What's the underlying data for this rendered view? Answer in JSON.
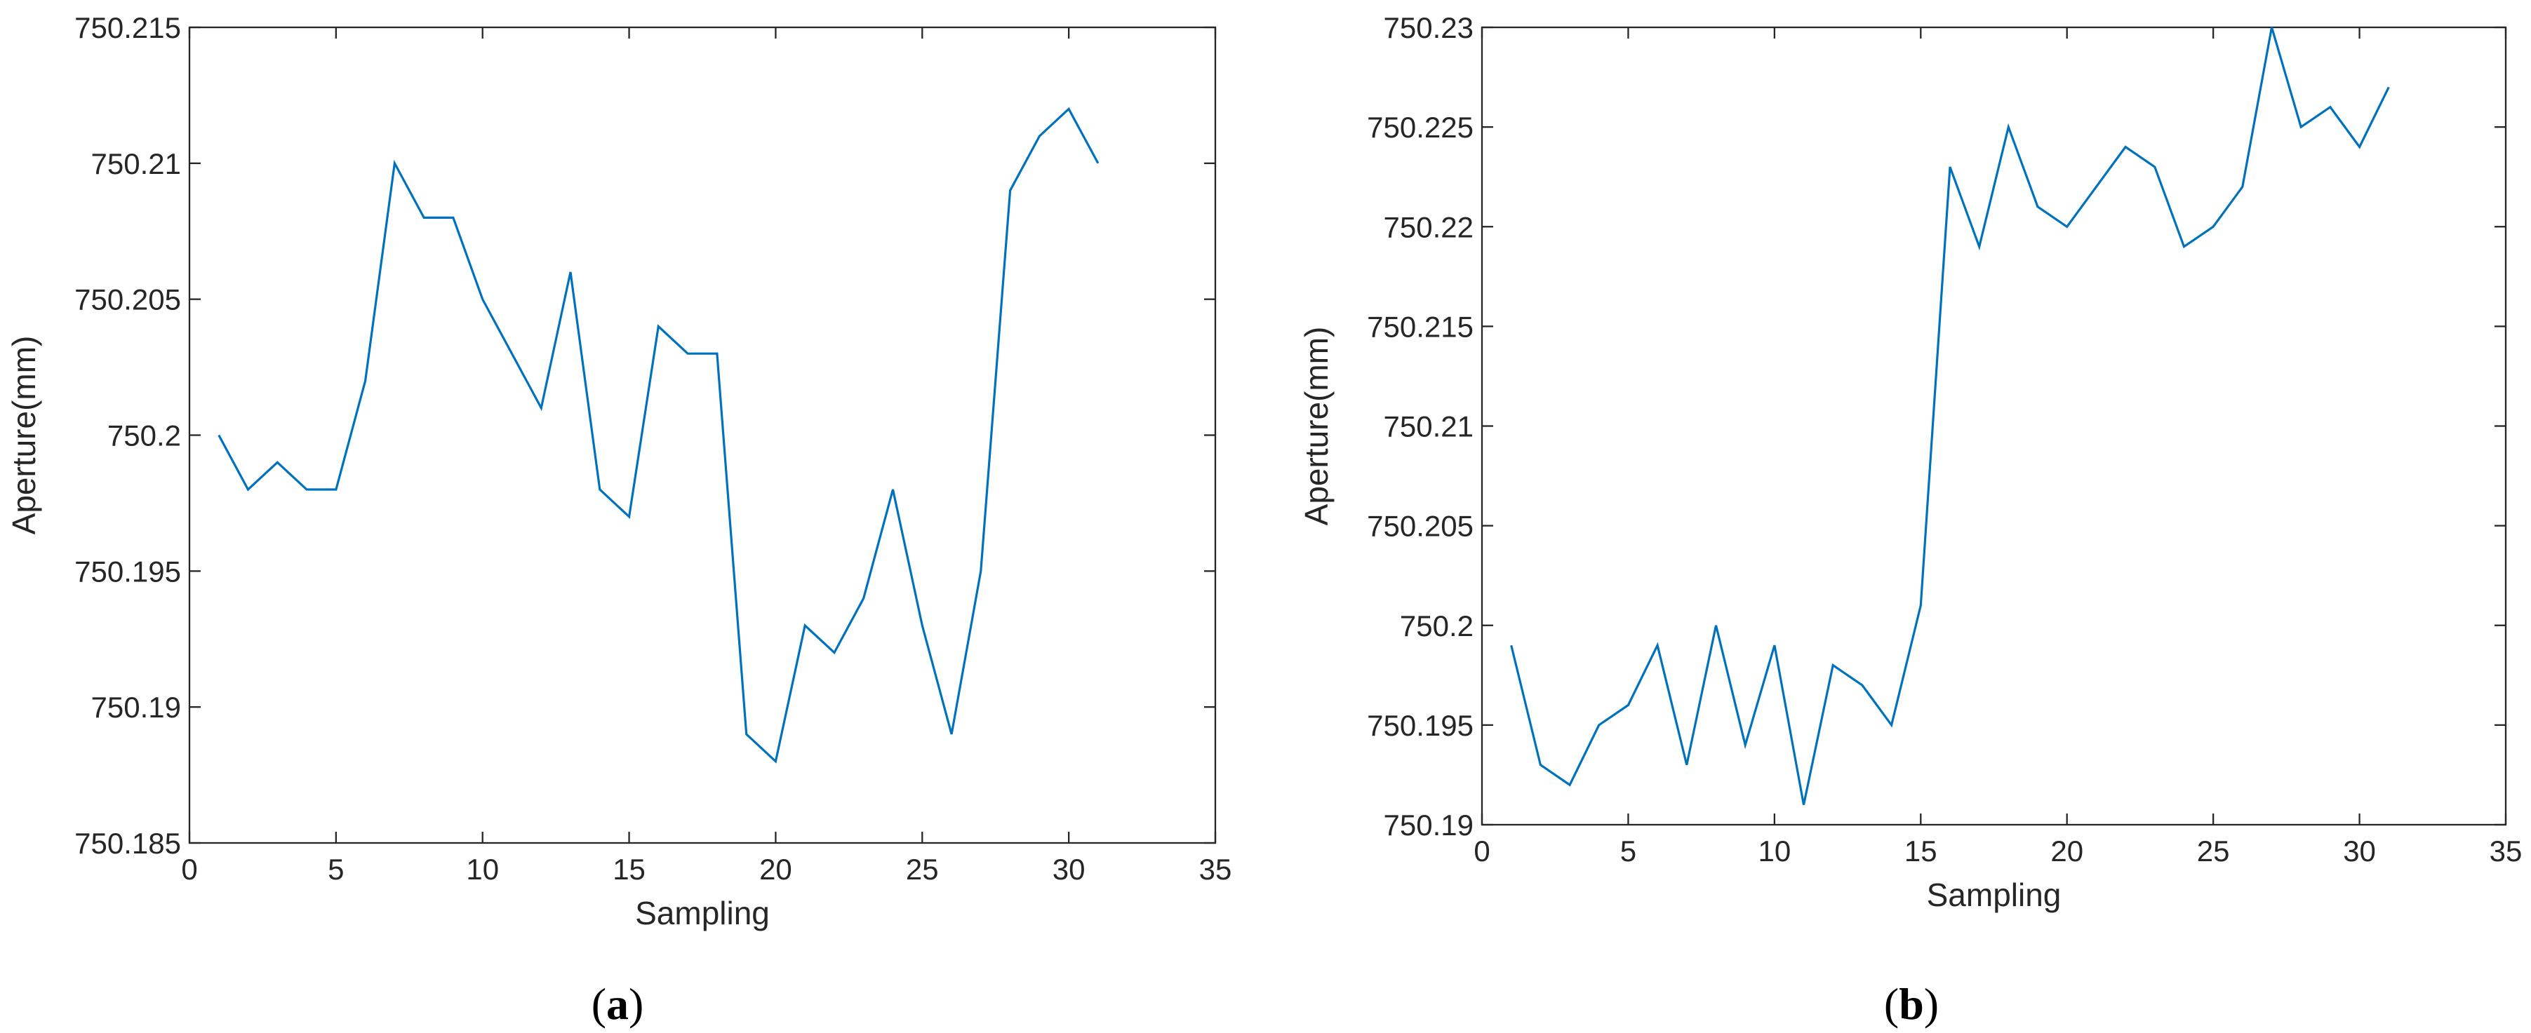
{
  "chart_data": [
    {
      "type": "line",
      "panel_label": "a",
      "xlabel": "Sampling",
      "ylabel": "Aperture(mm)",
      "xlim": [
        0,
        35
      ],
      "ylim": [
        750.185,
        750.215
      ],
      "x_ticks": [
        0,
        5,
        10,
        15,
        20,
        25,
        30,
        35
      ],
      "y_ticks": [
        "750.185",
        "750.19",
        "750.195",
        "750.2",
        "750.205",
        "750.21",
        "750.215"
      ],
      "grid": false,
      "x": [
        1,
        2,
        3,
        4,
        5,
        6,
        7,
        8,
        9,
        10,
        11,
        12,
        13,
        14,
        15,
        16,
        17,
        18,
        19,
        20,
        21,
        22,
        23,
        24,
        25,
        26,
        27,
        28,
        29,
        30,
        31
      ],
      "series": [
        {
          "color": "#0072BD",
          "values": [
            750.2,
            750.198,
            750.199,
            750.198,
            750.198,
            750.202,
            750.21,
            750.208,
            750.208,
            750.205,
            750.203,
            750.201,
            750.206,
            750.198,
            750.197,
            750.204,
            750.203,
            750.203,
            750.189,
            750.188,
            750.193,
            750.192,
            750.194,
            750.198,
            750.193,
            750.189,
            750.195,
            750.209,
            750.211,
            750.212,
            750.21
          ]
        }
      ]
    },
    {
      "type": "line",
      "panel_label": "b",
      "xlabel": "Sampling",
      "ylabel": "Aperture(mm)",
      "xlim": [
        0,
        35
      ],
      "ylim": [
        750.19,
        750.23
      ],
      "x_ticks": [
        0,
        5,
        10,
        15,
        20,
        25,
        30,
        35
      ],
      "y_ticks": [
        "750.19",
        "750.195",
        "750.2",
        "750.205",
        "750.21",
        "750.215",
        "750.22",
        "750.225",
        "750.23"
      ],
      "grid": false,
      "x": [
        1,
        2,
        3,
        4,
        5,
        6,
        7,
        8,
        9,
        10,
        11,
        12,
        13,
        14,
        15,
        16,
        17,
        18,
        19,
        20,
        21,
        22,
        23,
        24,
        25,
        26,
        27,
        28,
        29,
        30,
        31
      ],
      "series": [
        {
          "color": "#0072BD",
          "values": [
            750.199,
            750.193,
            750.192,
            750.195,
            750.196,
            750.199,
            750.193,
            750.2,
            750.194,
            750.199,
            750.191,
            750.198,
            750.197,
            750.195,
            750.201,
            750.223,
            750.219,
            750.225,
            750.221,
            750.22,
            750.222,
            750.224,
            750.223,
            750.219,
            750.22,
            750.222,
            750.23,
            750.225,
            750.226,
            750.224,
            750.227
          ]
        }
      ]
    }
  ]
}
